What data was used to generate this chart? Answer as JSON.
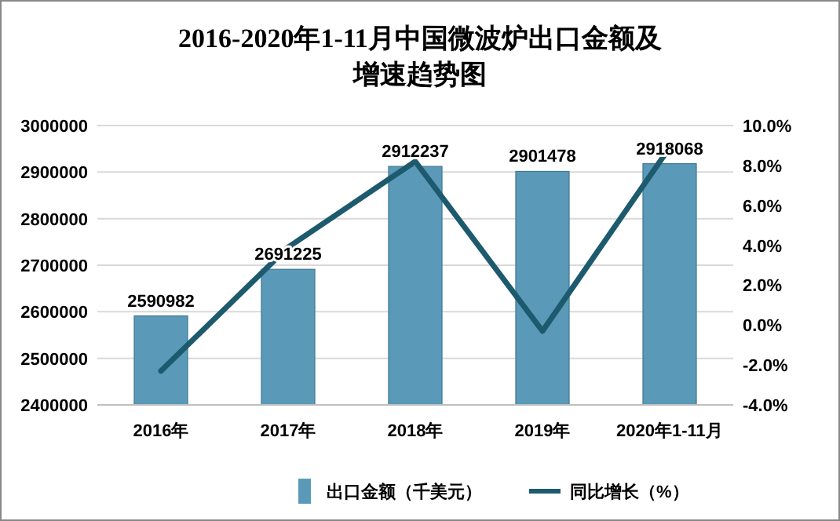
{
  "chart_data": {
    "type": "bar",
    "title": "2016-2020年1-11月中国微波炉出口金额及增速趋势图",
    "categories": [
      "2016年",
      "2017年",
      "2018年",
      "2019年",
      "2020年1-11月"
    ],
    "series": [
      {
        "name": "出口金额（千美元）",
        "color": "#5a9ab8",
        "values": [
          2590982,
          2691225,
          2912237,
          2901478,
          2918068
        ],
        "value_labels": [
          "2590982",
          "2691225",
          "2912237",
          "2901478",
          "2918068"
        ]
      },
      {
        "name": "同比增长（%）",
        "type": "line",
        "axis": "y2",
        "color": "#1d5a6e",
        "values": [
          -2.3,
          3.9,
          8.2,
          -0.3,
          8.9
        ]
      }
    ],
    "ylim": [
      2400000,
      3000000
    ],
    "yticks": [
      2400000,
      2500000,
      2600000,
      2700000,
      2800000,
      2900000,
      3000000
    ],
    "y2lim": [
      -4,
      10
    ],
    "y2ticks": [
      {
        "value": -4,
        "label": "-4.0%"
      },
      {
        "value": -2,
        "label": "-2.0%"
      },
      {
        "value": 0,
        "label": "0.0%"
      },
      {
        "value": 2,
        "label": "2.0%"
      },
      {
        "value": 4,
        "label": "4.0%"
      },
      {
        "value": 6,
        "label": "6.0%"
      },
      {
        "value": 8,
        "label": "8.0%"
      },
      {
        "value": 10,
        "label": "10.0%"
      }
    ],
    "grid": "y",
    "legend": "bottom"
  }
}
